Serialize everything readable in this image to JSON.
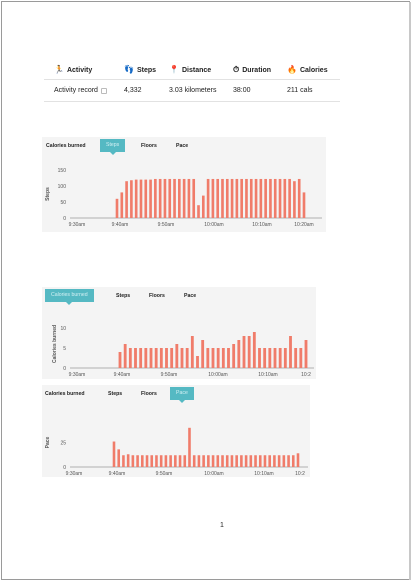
{
  "summary": {
    "headers": [
      {
        "label": "Activity",
        "icon": "runner-icon",
        "glyph": "🏃",
        "color": "#1aa29a"
      },
      {
        "label": "Steps",
        "icon": "footprints-icon",
        "glyph": "👣",
        "color": "#e0505a"
      },
      {
        "label": "Distance",
        "icon": "map-pin-icon",
        "glyph": "📍",
        "color": "#2a7fc9"
      },
      {
        "label": "Duration",
        "icon": "clock-icon",
        "glyph": "⏱",
        "color": "#d2333c"
      },
      {
        "label": "Calories",
        "icon": "flame-icon",
        "glyph": "🔥",
        "color": "#f0a020"
      }
    ],
    "row": {
      "activity": "Activity record",
      "steps": "4,332",
      "distance": "3.03 kilometers",
      "duration": "38:00",
      "calories": "211 cals"
    }
  },
  "charts": [
    {
      "tabs": [
        "Calories burned",
        "Steps",
        "Floors",
        "Pace"
      ],
      "active_tab": 1
    },
    {
      "tabs": [
        "Calories burned",
        "Steps",
        "Floors",
        "Pace"
      ],
      "active_tab": 0
    },
    {
      "tabs": [
        "Calories burned",
        "Steps",
        "Floors",
        "Pace"
      ],
      "active_tab": 3
    }
  ],
  "chart_data": [
    {
      "type": "bar",
      "title": "",
      "ylabel": "Steps",
      "yticks": [
        0,
        50,
        100,
        150
      ],
      "ylim": [
        0,
        150
      ],
      "xticks": [
        "9:30am",
        "9:40am",
        "9:50am",
        "10:00am",
        "10:10am",
        "10:20am"
      ],
      "values": [
        60,
        80,
        115,
        118,
        120,
        120,
        120,
        120,
        122,
        122,
        122,
        122,
        122,
        122,
        122,
        122,
        122,
        40,
        70,
        122,
        122,
        122,
        122,
        122,
        122,
        122,
        122,
        122,
        122,
        122,
        122,
        122,
        122,
        122,
        122,
        122,
        122,
        115,
        122,
        80
      ],
      "color": "#f07c6a"
    },
    {
      "type": "bar",
      "title": "",
      "ylabel": "Calories burned",
      "yticks": [
        0,
        5,
        10
      ],
      "ylim": [
        0,
        12
      ],
      "xticks": [
        "9:30am",
        "9:40am",
        "9:50am",
        "10:00am",
        "10:10am",
        "10:2"
      ],
      "values": [
        4,
        6,
        5,
        5,
        5,
        5,
        5,
        5,
        5,
        5,
        5,
        6,
        5,
        5,
        8,
        3,
        7,
        5,
        5,
        5,
        5,
        5,
        6,
        7,
        8,
        8,
        9,
        5,
        5,
        5,
        5,
        5,
        5,
        8,
        5,
        5,
        7
      ],
      "color": "#f07c6a"
    },
    {
      "type": "bar",
      "title": "",
      "ylabel": "Pace",
      "yticks": [
        0,
        25
      ],
      "ylim": [
        0,
        50
      ],
      "xticks": [
        "9:30am",
        "9:40am",
        "9:50am",
        "10:00am",
        "10:10am",
        "10:2"
      ],
      "values": [
        26,
        18,
        12,
        13,
        12,
        12,
        12,
        12,
        12,
        12,
        12,
        12,
        12,
        12,
        12,
        12,
        40,
        12,
        12,
        12,
        12,
        12,
        12,
        12,
        12,
        12,
        12,
        12,
        12,
        12,
        12,
        12,
        12,
        12,
        12,
        12,
        12,
        12,
        12,
        14
      ],
      "color": "#f07c6a"
    }
  ],
  "page_number": "1"
}
